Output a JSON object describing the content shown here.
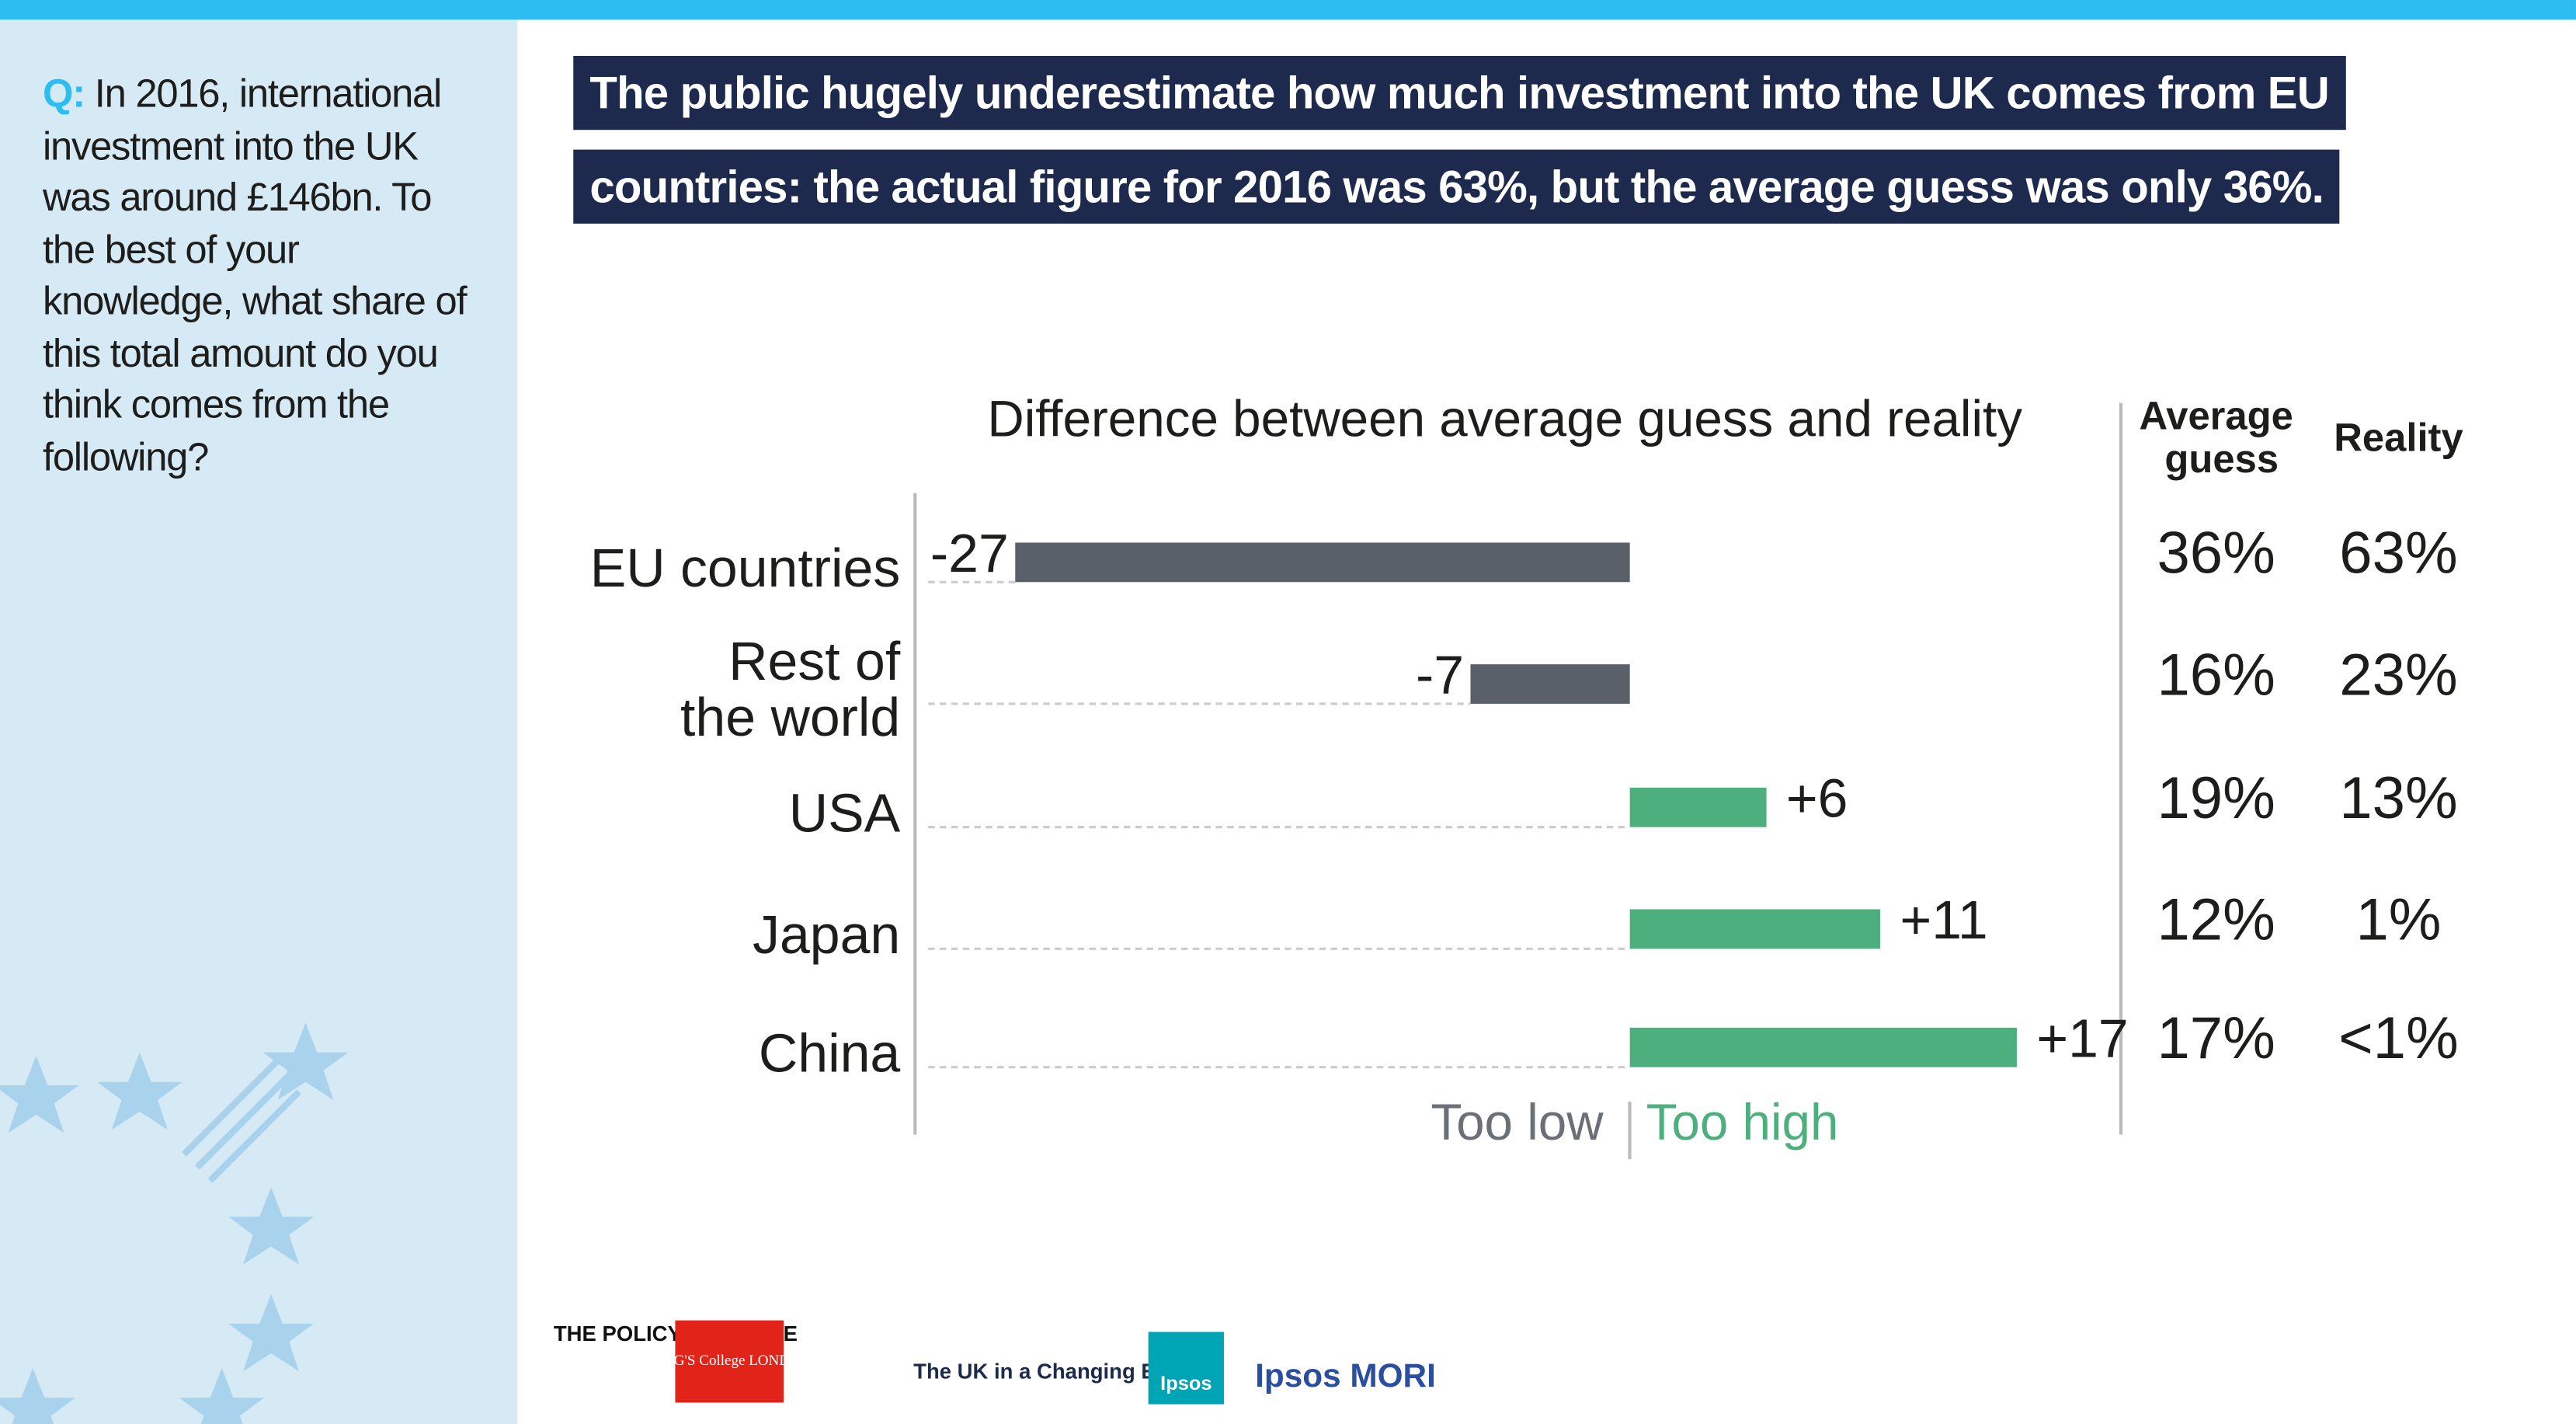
{
  "question_label": "Q:",
  "question": "In 2016, international investment into the UK was around £146bn. To the best of your knowledge, what share of this total amount do you think comes from the following?",
  "headline": "The public hugely underestimate how much investment into the UK comes from EU countries: the actual figure for 2016 was 63%, but the average guess was only 36%.",
  "chart_data": {
    "type": "bar",
    "orientation": "horizontal",
    "title": "Difference between average guess and reality",
    "categories": [
      "EU countries",
      "Rest of the world",
      "USA",
      "Japan",
      "China"
    ],
    "values": [
      -27,
      -7,
      6,
      11,
      17
    ],
    "value_labels": [
      "-27",
      "-7",
      "+6",
      "+11",
      "+17"
    ],
    "colors": {
      "negative": "#5a6069",
      "positive": "#4caf7d"
    },
    "xlim": [
      -31.4,
      21.5
    ],
    "annotations": {
      "too_low": "Too low",
      "too_high": "Too high"
    },
    "columns": [
      {
        "name": "Average guess",
        "values": [
          "36%",
          "16%",
          "19%",
          "12%",
          "17%"
        ]
      },
      {
        "name": "Reality",
        "values": [
          "63%",
          "23%",
          "13%",
          "1%",
          "<1%"
        ]
      }
    ]
  },
  "logos": [
    "THE POLICY INSTITUTE",
    "KING'S College LONDON",
    "The UK in a Changing Europe",
    "Ipsos",
    "Ipsos MORI"
  ]
}
